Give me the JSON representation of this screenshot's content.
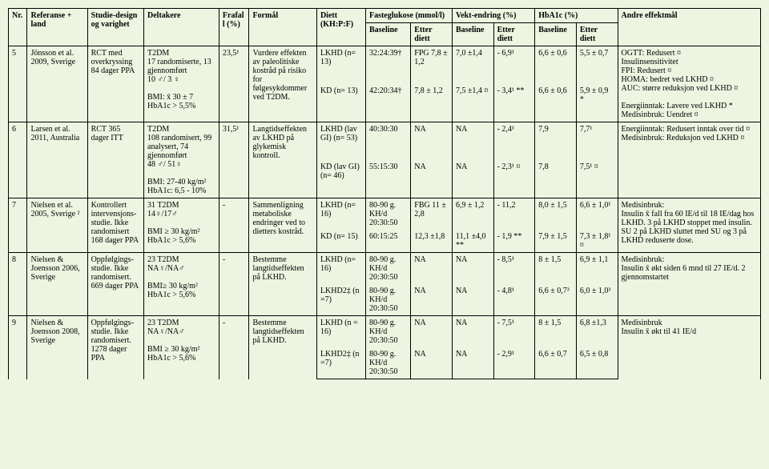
{
  "colors": {
    "background": "#edf5e1",
    "border": "#000000",
    "text": "#000000"
  },
  "fontsize_pt": 9,
  "headers": {
    "nr": "Nr.",
    "ref": "Referanse + land",
    "design": "Studie-design og varighet",
    "deltakere": "Deltakere",
    "frafall": "Frafall (%)",
    "formal": "Formål",
    "diett": "Diett (KH:P:F)",
    "fasteglukose": "Fasteglukose (mmol/l)",
    "vekt": "Vekt-endring (%)",
    "hba1c": "HbA1c (%)",
    "andre": "Andre effektmål",
    "baseline": "Baseline",
    "etter": "Etter diett"
  },
  "rows": [
    {
      "nr": "5",
      "ref": "Jönsson et al. 2009, Sverige",
      "design": "RCT med overkryssing 84 dager PPA",
      "deltakere": "T2DM\n17 randomiserte, 13 gjennomført\n10 ♂/ 3 ♀\n\nBMI: x̄ 30 ± 7\nHbA1c > 5,5%",
      "frafall": "23,5¹",
      "formal": "Vurdere effekten av paleolitiske kostråd på risiko for følgesykdommer ved T2DM.",
      "sub": [
        {
          "diett": "LKHD (n= 13)",
          "fg_b": "32:24:39†",
          "fg_e": "FPG 7,8 ± 1,2",
          "vkt_b": "7,0 ±1,4",
          "vkt_e": "- 6,9¹",
          "h_b": "6,6 ± 0,6",
          "h_e": "5,5 ± 0,7"
        },
        {
          "diett": "KD (n= 13)",
          "fg_b": "42:20:34†",
          "fg_e": "7,8 ± 1,2",
          "vkt_b": "7,5 ±1,4 ¤",
          "vkt_e": "- 3,4¹ **",
          "h_b": "6,6 ± 0,6",
          "h_e": "5,9 ± 0,9 *"
        }
      ],
      "andre": "OGTT: Redusert ¤\nInsulinsensitivitet\nFPI: Redusert ¤\nHOMA: bedret ved LKHD ¤\nAUC: større reduksjon ved LKHD ¤\n\nEnergiinntak: Lavere ved LKHD *\nMedisinbruk: Uendret ¤"
    },
    {
      "nr": "6",
      "ref": "Larsen et al. 2011, Australia",
      "design": "RCT 365 dager ITT",
      "deltakere": "T2DM\n108 randomisert, 99 analysert, 74 gjennomført\n48 ♂/ 51♀\n\nBMI: 27-40 kg/m²\nHbA1c: 6,5 - 10%",
      "frafall": "31,5¹",
      "formal": "Langtidseffekten av LKHD på glykemisk kontroll.",
      "sub": [
        {
          "diett": "LKHD (lav GI) (n= 53)",
          "fg_b": "40:30:30",
          "fg_e": "NA",
          "vkt_b": "NA",
          "vkt_e": "- 2,4¹",
          "h_b": "7,9",
          "h_e": "7,7¹"
        },
        {
          "diett": "KD (lav GI) (n= 46)",
          "fg_b": "55:15:30",
          "fg_e": "NA",
          "vkt_b": "NA",
          "vkt_e": "- 2,3¹ ¤",
          "h_b": "7,8",
          "h_e": "7,5¹ ¤"
        }
      ],
      "andre": "Energiinntak: Redusert inntak over tid ¤\nMedisinbruk: Reduksjon ved LKHD ¤"
    },
    {
      "nr": "7",
      "ref": "Nielsen et al. 2005, Sverige ²",
      "design": "Kontrollert intervensjons-studie. Ikke randomisert 168 dager PPA",
      "deltakere": "31 T2DM\n14♀/17♂\n\nBMI ≥ 30 kg/m²\nHbA1c > 5,6%",
      "frafall": "-",
      "formal": "Sammenligning metaboliske endringer ved to dietters kostråd.",
      "sub": [
        {
          "diett": "LKHD (n= 16)",
          "fg_b": "80-90 g. KH/d 20:30:50",
          "fg_e": "FBG 11 ± 2,8",
          "vkt_b": "6,9 ± 1,2",
          "vkt_e": "- 11,2",
          "h_b": "8,0 ± 1,5",
          "h_e": "6,6 ± 1,0¹"
        },
        {
          "diett": "KD (n= 15)",
          "fg_b": "60:15:25",
          "fg_e": "12,3 ±1,8",
          "vkt_b": "11,1 ±4,0 **",
          "vkt_e": "- 1,9 **",
          "h_b": "7,9 ± 1,5",
          "h_e": "7,3 ± 1,8¹ ¤"
        }
      ],
      "andre": "Medisinbruk:\nInsulin  x̄ fall fra 60 IE/d til 18 IE/dag hos LKHD. 3 på LKHD stoppet med insulin. SU 2 på LKHD sluttet med SU og 3 på LKHD reduserte dose."
    },
    {
      "nr": "8",
      "ref": "Nielsen & Joensson 2006, Sverige",
      "design": "Oppfølgings-studie. Ikke randomisert. 669 dager PPA",
      "deltakere": "23 T2DM\nNA♀/NA♂\n\nBMI≥ 30 kg/m²\nHbA1c > 5,6%",
      "frafall": "-",
      "formal": "Bestemme langtidseffekten på LKHD.",
      "sub": [
        {
          "diett": "LKHD (n= 16)",
          "fg_b": "80-90 g. KH/d 20:30:50",
          "fg_e": "NA",
          "vkt_b": "NA",
          "vkt_e": "- 8,5¹",
          "h_b": "8 ± 1,5",
          "h_e": "6,9 ± 1,1"
        },
        {
          "diett": "LKHD2‡ (n =7)",
          "fg_b": "80-90 g. KH/d 20:30:50",
          "fg_e": "NA",
          "vkt_b": "NA",
          "vkt_e": "- 4,8¹",
          "h_b": "6,6 ± 0,7³",
          "h_e": "6,0 ± 1,0³"
        }
      ],
      "andre": "Medisinbruk:\nInsulin x̄ økt siden 6 mnd til 27 IE/d. 2 gjennomstartet"
    },
    {
      "nr": "9",
      "ref": "Nielsen & Joensson 2008, Sverige",
      "design": "Oppfølgings-studie. Ikke randomisert. 1278 dager PPA",
      "deltakere": "23 T2DM\nNA♀/NA♂\n\nBMI ≥ 30 kg/m²\nHbA1c > 5,6%",
      "frafall": "-",
      "formal": "Bestemme langtidseffekten på LKHD.",
      "sub": [
        {
          "diett": "LKHD (n = 16)",
          "fg_b": "80-90 g. KH/d 20:30:50",
          "fg_e": "NA",
          "vkt_b": "NA",
          "vkt_e": "- 7,5¹",
          "h_b": "8 ± 1,5",
          "h_e": "6,8 ±1,3"
        },
        {
          "diett": "LKHD2‡ (n =7)",
          "fg_b": "80-90 g. KH/d 20:30:50",
          "fg_e": "NA",
          "vkt_b": "NA",
          "vkt_e": "- 2,9¹",
          "h_b": "6,6 ± 0,7",
          "h_e": "6,5 ± 0,8"
        }
      ],
      "andre": "Medisinbruk\nInsulin x̄ økt til 41 IE/d"
    }
  ]
}
